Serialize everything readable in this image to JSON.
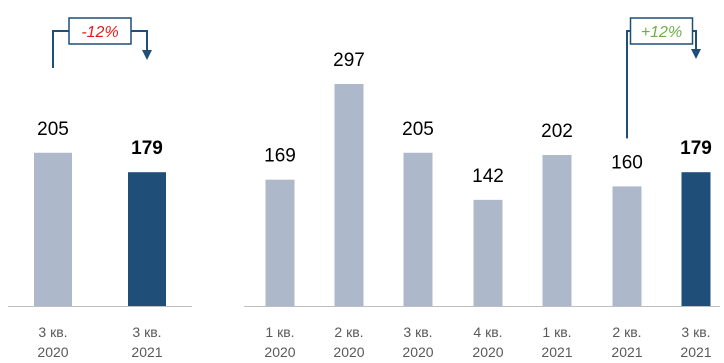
{
  "colors": {
    "bar_default": "#adb9ca",
    "bar_highlight": "#1f4e79",
    "axis": "#bfbfbf",
    "label_text": "#000000",
    "tick_text": "#595959",
    "connector": "#1f4e79",
    "change_negative": "#e31a1c",
    "change_positive": "#70ad47"
  },
  "chart_data": [
    {
      "type": "bar",
      "categories": [
        "3 кв. 2020",
        "3 кв. 2021"
      ],
      "values": [
        205,
        179
      ],
      "highlight": [
        false,
        true
      ],
      "value_labels": [
        "205",
        "179"
      ],
      "ylim": [
        0,
        310
      ],
      "title": "",
      "xlabel": "",
      "ylabel": "",
      "annotation": {
        "text": "-12%",
        "from_index": 0,
        "to_index": 1,
        "tone": "negative"
      }
    },
    {
      "type": "bar",
      "categories": [
        "1 кв. 2020",
        "2 кв. 2020",
        "3 кв. 2020",
        "4 кв. 2020",
        "1 кв. 2021",
        "2 кв. 2021",
        "3 кв. 2021"
      ],
      "values": [
        169,
        297,
        205,
        142,
        202,
        160,
        179
      ],
      "highlight": [
        false,
        false,
        false,
        false,
        false,
        false,
        true
      ],
      "value_labels": [
        "169",
        "297",
        "205",
        "142",
        "202",
        "160",
        "179"
      ],
      "ylim": [
        0,
        310
      ],
      "title": "",
      "xlabel": "",
      "ylabel": "",
      "annotation": {
        "text": "+12%",
        "from_index": 5,
        "to_index": 6,
        "tone": "positive"
      }
    }
  ]
}
